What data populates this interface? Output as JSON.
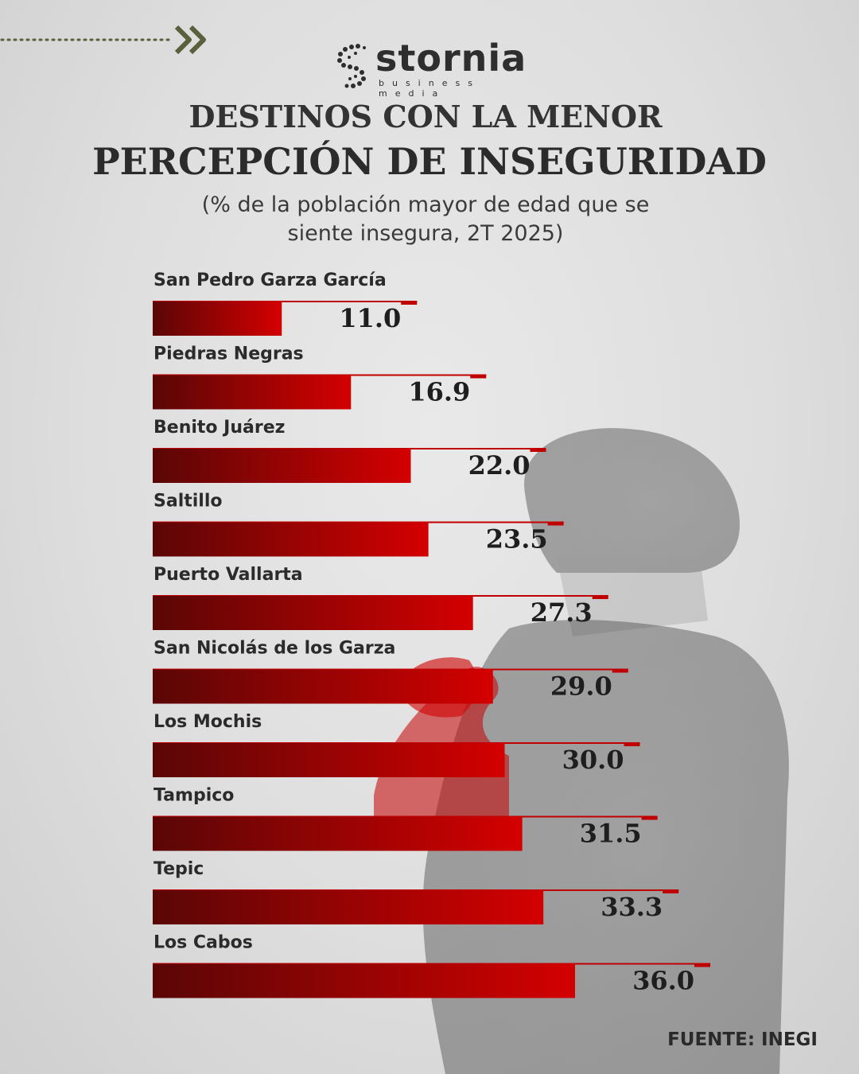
{
  "brand": {
    "name": "stornia",
    "tagline": "business media"
  },
  "header": {
    "title_line1": "DESTINOS CON LA MENOR",
    "title_line2": "PERCEPCIÓN DE INSEGURIDAD",
    "subtitle_line1": "(% de la población mayor de edad que se",
    "subtitle_line2": "siente insegura, 2T 2025)"
  },
  "footer": {
    "source": "FUENTE: INEGI"
  },
  "colors": {
    "bar_dark": "#5a0606",
    "bar_bright": "#d40000",
    "text": "#2b2b2b",
    "deco": "#5a5f3c"
  },
  "chart_data": {
    "type": "bar",
    "orientation": "horizontal",
    "categories": [
      "San Pedro Garza García",
      "Piedras Negras",
      "Benito Juárez",
      "Saltillo",
      "Puerto Vallarta",
      "San Nicolás de los Garza",
      "Los Mochis",
      "Tampico",
      "Tepic",
      "Los Cabos"
    ],
    "values": [
      11.0,
      16.9,
      22.0,
      23.5,
      27.3,
      29.0,
      30.0,
      31.5,
      33.3,
      36.0
    ],
    "value_labels": [
      "11.0",
      "16.9",
      "22.0",
      "23.5",
      "27.3",
      "29.0",
      "30.0",
      "31.5",
      "33.3",
      "36.0"
    ],
    "grid": false,
    "legend": false
  }
}
